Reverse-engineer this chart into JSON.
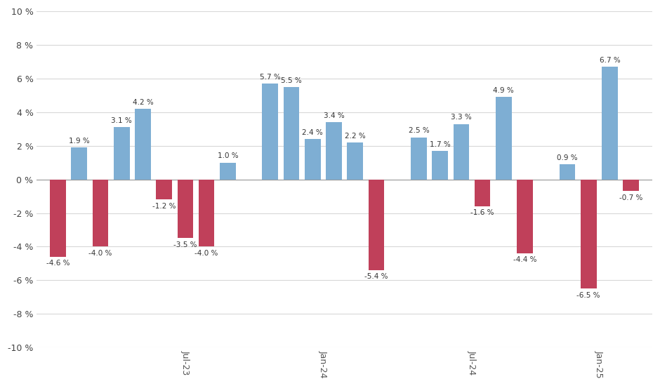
{
  "bars": [
    {
      "x": 1,
      "val": -4.6,
      "color": "red",
      "label": "-4.6 %"
    },
    {
      "x": 2,
      "val": 1.9,
      "color": "blue",
      "label": "1.9 %"
    },
    {
      "x": 3,
      "val": -4.0,
      "color": "red",
      "label": "-4.0 %"
    },
    {
      "x": 4,
      "val": 3.1,
      "color": "blue",
      "label": "3.1 %"
    },
    {
      "x": 5,
      "val": 4.2,
      "color": "blue",
      "label": "4.2 %"
    },
    {
      "x": 6,
      "val": -1.2,
      "color": "red",
      "label": "-1.2 %"
    },
    {
      "x": 7,
      "val": -3.5,
      "color": "red",
      "label": "-3.5 %"
    },
    {
      "x": 8,
      "val": -4.0,
      "color": "red",
      "label": "-4.0 %"
    },
    {
      "x": 9,
      "val": 1.0,
      "color": "blue",
      "label": "1.0 %"
    },
    {
      "x": 11,
      "val": 5.7,
      "color": "blue",
      "label": "5.7 %"
    },
    {
      "x": 12,
      "val": 5.5,
      "color": "blue",
      "label": "5.5 %"
    },
    {
      "x": 13,
      "val": 2.4,
      "color": "blue",
      "label": "2.4 %"
    },
    {
      "x": 14,
      "val": 3.4,
      "color": "blue",
      "label": "3.4 %"
    },
    {
      "x": 15,
      "val": 2.2,
      "color": "blue",
      "label": "2.2 %"
    },
    {
      "x": 16,
      "val": -5.4,
      "color": "red",
      "label": "-5.4 %"
    },
    {
      "x": 18,
      "val": 2.5,
      "color": "blue",
      "label": "2.5 %"
    },
    {
      "x": 19,
      "val": 1.7,
      "color": "blue",
      "label": "1.7 %"
    },
    {
      "x": 20,
      "val": 3.3,
      "color": "blue",
      "label": "3.3 %"
    },
    {
      "x": 21,
      "val": -1.6,
      "color": "red",
      "label": "-1.6 %"
    },
    {
      "x": 22,
      "val": 4.9,
      "color": "blue",
      "label": "4.9 %"
    },
    {
      "x": 23,
      "val": -4.4,
      "color": "red",
      "label": "-4.4 %"
    },
    {
      "x": 25,
      "val": 0.9,
      "color": "blue",
      "label": "0.9 %"
    },
    {
      "x": 26,
      "val": -6.5,
      "color": "red",
      "label": "-6.5 %"
    },
    {
      "x": 27,
      "val": 6.7,
      "color": "blue",
      "label": "6.7 %"
    },
    {
      "x": 28,
      "val": -0.7,
      "color": "red",
      "label": "-0.7 %"
    }
  ],
  "xtick_positions": [
    7,
    13.5,
    20.5,
    26.5
  ],
  "xtick_labels": [
    "Jul-23",
    "Jan-24",
    "Jul-24",
    "Jan-25"
  ],
  "ylim": [
    -10,
    10
  ],
  "ytick_values": [
    -10,
    -8,
    -6,
    -4,
    -2,
    0,
    2,
    4,
    6,
    8,
    10
  ],
  "blue_color": "#7eaed3",
  "red_color": "#c0405a",
  "background_color": "#ffffff",
  "bar_width": 0.75,
  "label_fontsize": 7.5,
  "xlim": [
    0,
    29
  ]
}
